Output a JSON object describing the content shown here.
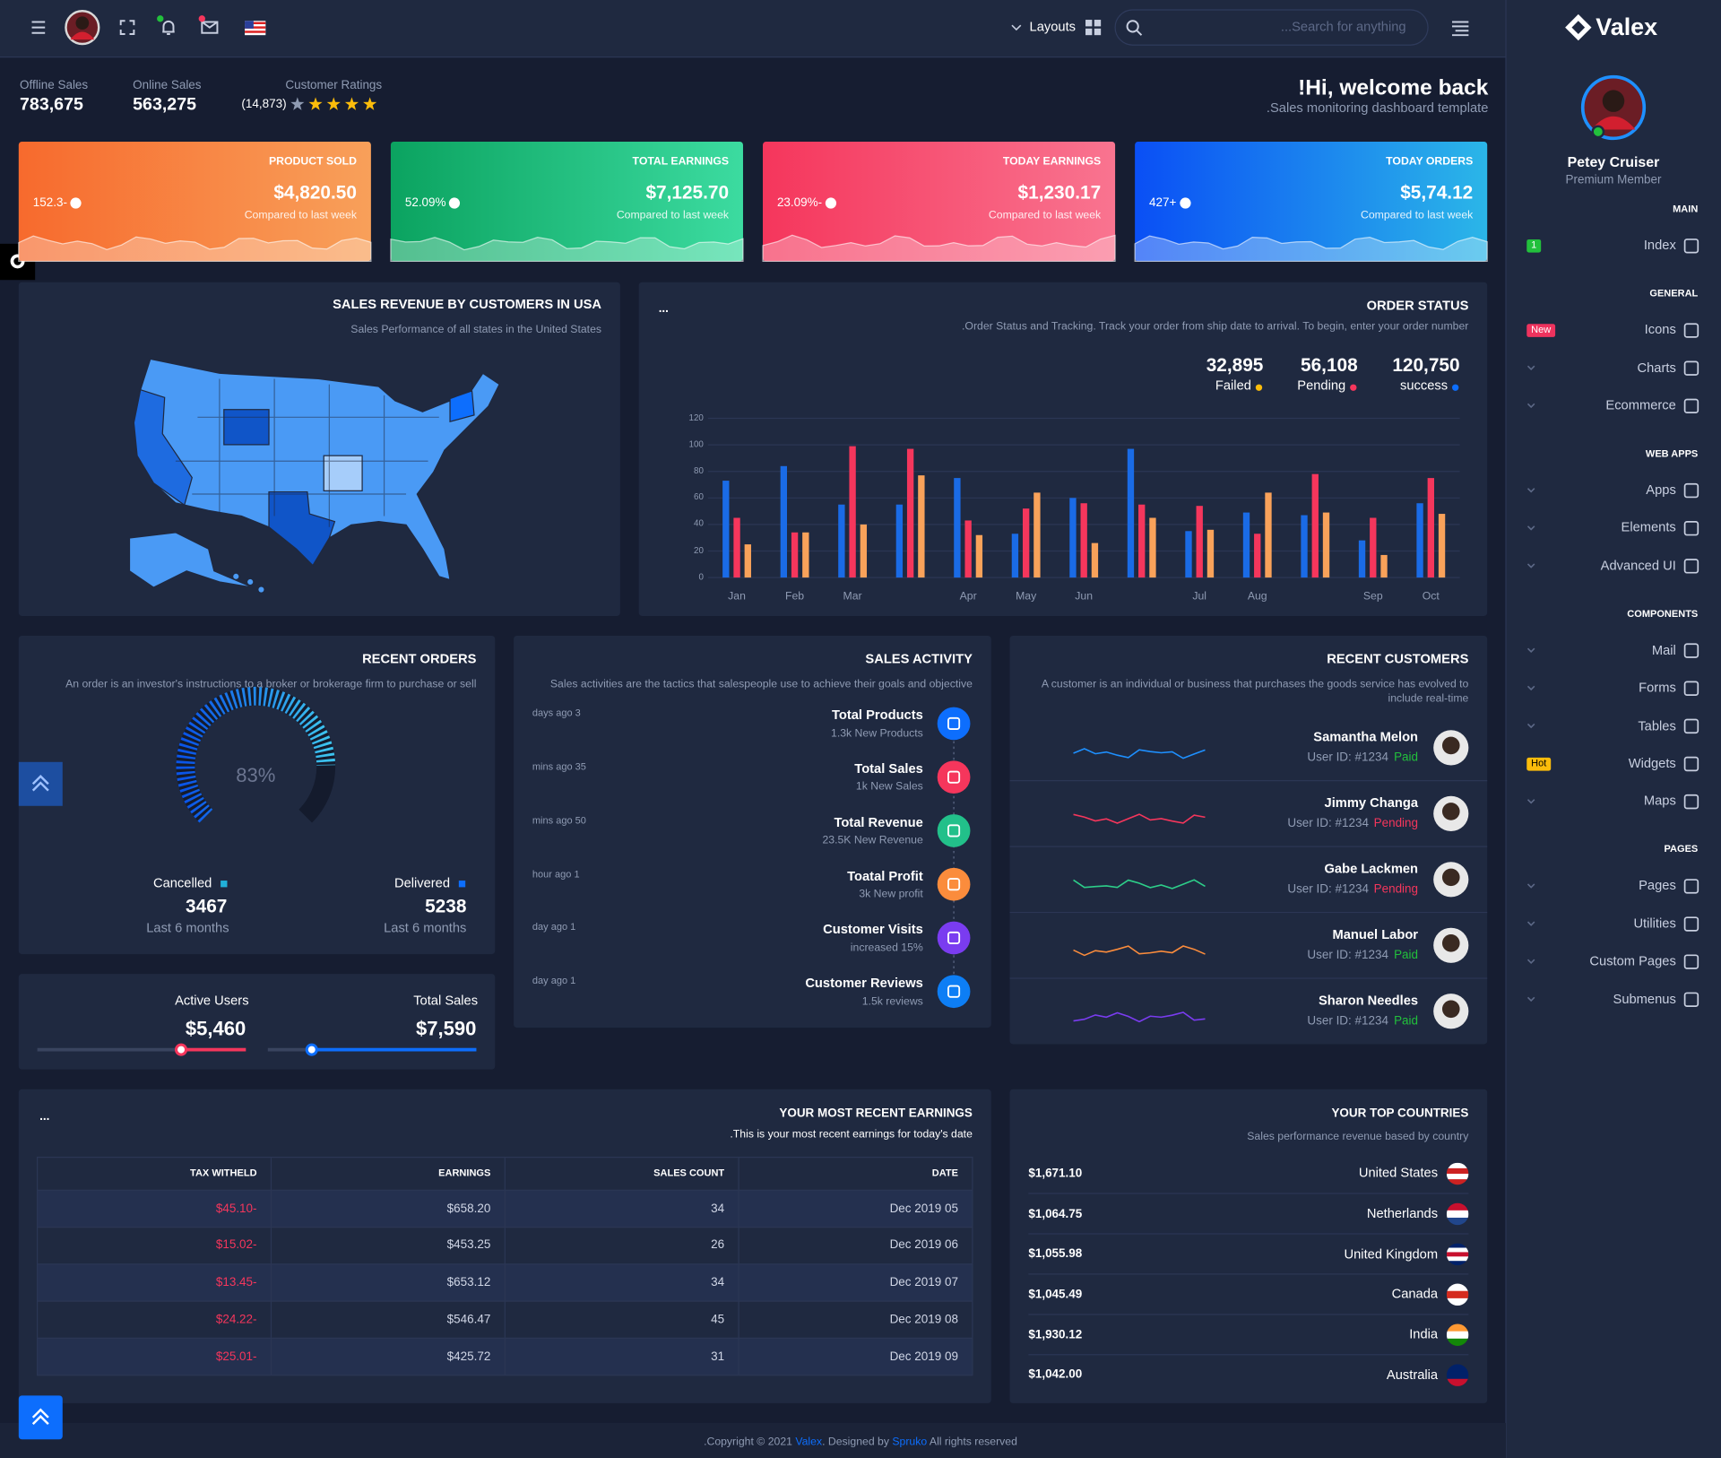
{
  "header": {
    "layouts": "Layouts",
    "search": "...Search for anything"
  },
  "sidebar": {
    "brand": "Valex",
    "user": "Petey Cruiser",
    "role": "Premium Member",
    "sections": [
      {
        "title": "MAIN",
        "items": [
          {
            "label": "Index",
            "badge": "1",
            "badge_color": "#22c03c"
          }
        ]
      },
      {
        "title": "GENERAL",
        "items": [
          {
            "label": "Icons",
            "badge": "New",
            "badge_color": "#ee335e"
          },
          {
            "label": "Charts"
          },
          {
            "label": "Ecommerce"
          }
        ]
      },
      {
        "title": "WEB APPS",
        "items": [
          {
            "label": "Apps"
          },
          {
            "label": "Elements"
          },
          {
            "label": "Advanced UI"
          }
        ]
      },
      {
        "title": "COMPONENTS",
        "items": [
          {
            "label": "Mail"
          },
          {
            "label": "Forms"
          },
          {
            "label": "Tables"
          },
          {
            "label": "Widgets",
            "badge": "Hot",
            "badge_color": "#fbbc0b"
          },
          {
            "label": "Maps"
          }
        ]
      },
      {
        "title": "PAGES",
        "items": [
          {
            "label": "Pages"
          },
          {
            "label": "Utilities"
          },
          {
            "label": "Custom Pages"
          },
          {
            "label": "Submenus"
          }
        ]
      }
    ]
  },
  "stats": [
    {
      "label": "Offline Sales",
      "value": "783,675"
    },
    {
      "label": "Online Sales",
      "value": "563,275"
    }
  ],
  "ratings": {
    "label": "Customer Ratings",
    "count": "(14,873)"
  },
  "welcome": {
    "title": "!Hi, welcome back",
    "subtitle": ".Sales monitoring dashboard template"
  },
  "cards": [
    {
      "title": "PRODUCT SOLD",
      "value": "$4,820.50",
      "change": "152.3-",
      "note": "Compared to last week"
    },
    {
      "title": "TOTAL EARNINGS",
      "value": "$7,125.70",
      "change": "52.09%",
      "note": "Compared to last week"
    },
    {
      "title": "TODAY EARNINGS",
      "value": "$1,230.17",
      "change": "23.09%-",
      "note": "Compared to last week"
    },
    {
      "title": "TODAY ORDERS",
      "value": "$5,74.12",
      "change": "427+",
      "note": "Compared to last week"
    }
  ],
  "map": {
    "title": "SALES REVENUE BY CUSTOMERS IN USA",
    "subtitle": "Sales Performance of all states in the United States"
  },
  "order_status": {
    "menu": "...",
    "title": "ORDER STATUS",
    "subtitle": ".Order Status and Tracking. Track your order from ship date to arrival. To begin, enter your order number",
    "stats": [
      {
        "value": "32,895",
        "label": "Failed"
      },
      {
        "value": "56,108",
        "label": "Pending"
      },
      {
        "value": "120,750",
        "label": "success"
      }
    ]
  },
  "chart_data": {
    "type": "bar",
    "categories": [
      "Jan",
      "Feb",
      "Mar",
      null,
      "Apr",
      "May",
      "Jun",
      null,
      "Jul",
      "Aug",
      null,
      "Sep",
      "Oct"
    ],
    "series": [
      {
        "color": "#1a6be6",
        "values": [
          73,
          84,
          55,
          55,
          75,
          33,
          60,
          97,
          35,
          49,
          47,
          28,
          56
        ]
      },
      {
        "color": "#f5365c",
        "values": [
          45,
          34,
          99,
          97,
          43,
          52,
          56,
          55,
          54,
          33,
          78,
          45,
          75
        ]
      },
      {
        "color": "#f9a25a",
        "values": [
          25,
          34,
          40,
          77,
          32,
          64,
          26,
          45,
          36,
          64,
          49,
          17,
          48
        ]
      }
    ],
    "ylim": [
      0,
      120
    ],
    "yticks": [
      0,
      20,
      40,
      60,
      80,
      100,
      120
    ],
    "grid": true
  },
  "recent_orders": {
    "title": "RECENT ORDERS",
    "subtitle": "An order is an investor's instructions to a broker or brokerage firm to purchase or sell",
    "gauge": {
      "value": 83,
      "value_label": "83%"
    },
    "stats": [
      {
        "label": "Cancelled",
        "value": "3467",
        "period": "Last 6 months"
      },
      {
        "label": "Delivered",
        "value": "5238",
        "period": "Last 6 months"
      }
    ]
  },
  "users_sales": [
    {
      "label": "Active Users",
      "value": "$5,460"
    },
    {
      "label": "Total Sales",
      "value": "$7,590"
    }
  ],
  "sales_activity": {
    "title": "SALES ACTIVITY",
    "subtitle": "Sales activities are the tactics that salespeople use to achieve their goals and objective",
    "items": [
      {
        "time": "days ago 3",
        "title": "Total Products",
        "sub": "1.3k New Products",
        "color": "#0d6efd"
      },
      {
        "time": "mins ago 35",
        "title": "Total Sales",
        "sub": "1k New Sales",
        "color": "#f5365c"
      },
      {
        "time": "mins ago 50",
        "title": "Total Revenue",
        "sub": "23.5K New Revenue",
        "color": "#22c08a"
      },
      {
        "time": "hour ago 1",
        "title": "Toatal Profit",
        "sub": "3k New profit",
        "color": "#fb8c3c"
      },
      {
        "time": "day ago 1",
        "title": "Customer Visits",
        "sub": "increased 15%",
        "color": "#7a3cf0"
      },
      {
        "time": "day ago 1",
        "title": "Customer Reviews",
        "sub": "1.5k reviews",
        "color": "#0d7ef5"
      }
    ]
  },
  "recent_customers": {
    "title": "RECENT CUSTOMERS",
    "subtitle": "A customer is an individual or business that purchases the goods service has evolved to include real-time",
    "items": [
      {
        "name": "Samantha Melon",
        "id": "User ID: #1234",
        "status": "Paid",
        "status_color": "#22c03c",
        "spark_color": "#1e90ff"
      },
      {
        "name": "Jimmy Changa",
        "id": "User ID: #1234",
        "status": "Pending",
        "status_color": "#f5365c",
        "spark_color": "#f5365c"
      },
      {
        "name": "Gabe Lackmen",
        "id": "User ID: #1234",
        "status": "Pending",
        "status_color": "#f5365c",
        "spark_color": "#2dce89"
      },
      {
        "name": "Manuel Labor",
        "id": "User ID: #1234",
        "status": "Paid",
        "status_color": "#22c03c",
        "spark_color": "#fb8c3c"
      },
      {
        "name": "Sharon Needles",
        "id": "User ID: #1234",
        "status": "Paid",
        "status_color": "#22c03c",
        "spark_color": "#7a3cf0"
      }
    ]
  },
  "earnings": {
    "menu": "...",
    "title": "YOUR MOST RECENT EARNINGS",
    "subtitle": ".This is your most recent earnings for today's date",
    "table": {
      "headers": [
        "TAX WITHELD",
        "EARNINGS",
        "SALES COUNT",
        "DATE"
      ],
      "rows": [
        [
          "$45.10-",
          "$658.20",
          "34",
          "Dec 2019 05"
        ],
        [
          "$15.02-",
          "$453.25",
          "26",
          "Dec 2019 06"
        ],
        [
          "$13.45-",
          "$653.12",
          "34",
          "Dec 2019 07"
        ],
        [
          "$24.22-",
          "$546.47",
          "45",
          "Dec 2019 08"
        ],
        [
          "$25.01-",
          "$425.72",
          "31",
          "Dec 2019 09"
        ]
      ]
    }
  },
  "countries": {
    "title": "YOUR TOP COUNTRIES",
    "subtitle": "Sales performance revenue based by country",
    "rows": [
      {
        "amount": "$1,671.10",
        "country": "United States"
      },
      {
        "amount": "$1,064.75",
        "country": "Netherlands"
      },
      {
        "amount": "$1,055.98",
        "country": "United Kingdom"
      },
      {
        "amount": "$1,045.49",
        "country": "Canada"
      },
      {
        "amount": "$1,930.12",
        "country": "India"
      },
      {
        "amount": "$1,042.00",
        "country": "Australia"
      }
    ]
  },
  "footer": {
    "prefix": ".Copyright © 2021 ",
    "brand": "Valex",
    "middle": ". Designed by ",
    "author": "Spruko",
    "suffix": " All rights reserved"
  }
}
